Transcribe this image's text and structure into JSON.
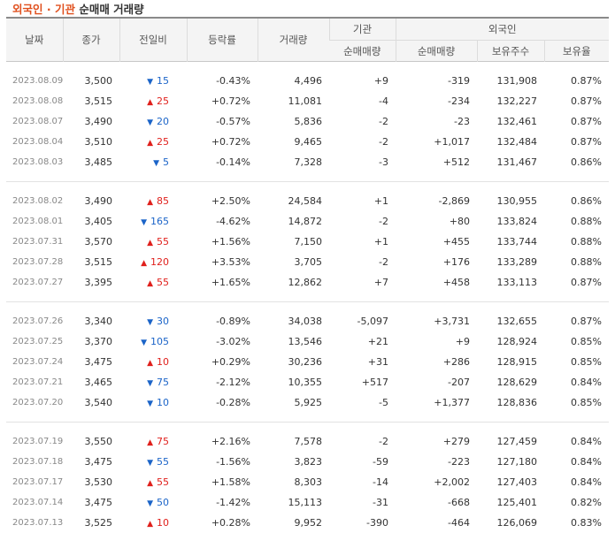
{
  "title": {
    "part1": "외국인 · 기관",
    "part2": "순매매 거래량"
  },
  "headers": {
    "date": "날짜",
    "close": "종가",
    "change": "전일비",
    "rate": "등락률",
    "volume": "거래량",
    "institution": "기관",
    "foreign": "외국인",
    "inst_net": "순매매량",
    "foreign_net": "순매매량",
    "holdings": "보유주수",
    "hold_ratio": "보유율"
  },
  "rows": [
    {
      "date": "2023.08.09",
      "close": "3,500",
      "dir": "down",
      "change": "15",
      "rate": "-0.43%",
      "volume": "4,496",
      "inst": "+9",
      "foreign": "-319",
      "holdings": "131,908",
      "ratio": "0.87%"
    },
    {
      "date": "2023.08.08",
      "close": "3,515",
      "dir": "up",
      "change": "25",
      "rate": "+0.72%",
      "volume": "11,081",
      "inst": "-4",
      "foreign": "-234",
      "holdings": "132,227",
      "ratio": "0.87%"
    },
    {
      "date": "2023.08.07",
      "close": "3,490",
      "dir": "down",
      "change": "20",
      "rate": "-0.57%",
      "volume": "5,836",
      "inst": "-2",
      "foreign": "-23",
      "holdings": "132,461",
      "ratio": "0.87%"
    },
    {
      "date": "2023.08.04",
      "close": "3,510",
      "dir": "up",
      "change": "25",
      "rate": "+0.72%",
      "volume": "9,465",
      "inst": "-2",
      "foreign": "+1,017",
      "holdings": "132,484",
      "ratio": "0.87%"
    },
    {
      "date": "2023.08.03",
      "close": "3,485",
      "dir": "down",
      "change": "5",
      "rate": "-0.14%",
      "volume": "7,328",
      "inst": "-3",
      "foreign": "+512",
      "holdings": "131,467",
      "ratio": "0.86%"
    },
    {
      "date": "2023.08.02",
      "close": "3,490",
      "dir": "up",
      "change": "85",
      "rate": "+2.50%",
      "volume": "24,584",
      "inst": "+1",
      "foreign": "-2,869",
      "holdings": "130,955",
      "ratio": "0.86%"
    },
    {
      "date": "2023.08.01",
      "close": "3,405",
      "dir": "down",
      "change": "165",
      "rate": "-4.62%",
      "volume": "14,872",
      "inst": "-2",
      "foreign": "+80",
      "holdings": "133,824",
      "ratio": "0.88%"
    },
    {
      "date": "2023.07.31",
      "close": "3,570",
      "dir": "up",
      "change": "55",
      "rate": "+1.56%",
      "volume": "7,150",
      "inst": "+1",
      "foreign": "+455",
      "holdings": "133,744",
      "ratio": "0.88%"
    },
    {
      "date": "2023.07.28",
      "close": "3,515",
      "dir": "up",
      "change": "120",
      "rate": "+3.53%",
      "volume": "3,705",
      "inst": "-2",
      "foreign": "+176",
      "holdings": "133,289",
      "ratio": "0.88%"
    },
    {
      "date": "2023.07.27",
      "close": "3,395",
      "dir": "up",
      "change": "55",
      "rate": "+1.65%",
      "volume": "12,862",
      "inst": "+7",
      "foreign": "+458",
      "holdings": "133,113",
      "ratio": "0.87%"
    },
    {
      "date": "2023.07.26",
      "close": "3,340",
      "dir": "down",
      "change": "30",
      "rate": "-0.89%",
      "volume": "34,038",
      "inst": "-5,097",
      "foreign": "+3,731",
      "holdings": "132,655",
      "ratio": "0.87%"
    },
    {
      "date": "2023.07.25",
      "close": "3,370",
      "dir": "down",
      "change": "105",
      "rate": "-3.02%",
      "volume": "13,546",
      "inst": "+21",
      "foreign": "+9",
      "holdings": "128,924",
      "ratio": "0.85%"
    },
    {
      "date": "2023.07.24",
      "close": "3,475",
      "dir": "up",
      "change": "10",
      "rate": "+0.29%",
      "volume": "30,236",
      "inst": "+31",
      "foreign": "+286",
      "holdings": "128,915",
      "ratio": "0.85%"
    },
    {
      "date": "2023.07.21",
      "close": "3,465",
      "dir": "down",
      "change": "75",
      "rate": "-2.12%",
      "volume": "10,355",
      "inst": "+517",
      "foreign": "-207",
      "holdings": "128,629",
      "ratio": "0.84%"
    },
    {
      "date": "2023.07.20",
      "close": "3,540",
      "dir": "down",
      "change": "10",
      "rate": "-0.28%",
      "volume": "5,925",
      "inst": "-5",
      "foreign": "+1,377",
      "holdings": "128,836",
      "ratio": "0.85%"
    },
    {
      "date": "2023.07.19",
      "close": "3,550",
      "dir": "up",
      "change": "75",
      "rate": "+2.16%",
      "volume": "7,578",
      "inst": "-2",
      "foreign": "+279",
      "holdings": "127,459",
      "ratio": "0.84%"
    },
    {
      "date": "2023.07.18",
      "close": "3,475",
      "dir": "down",
      "change": "55",
      "rate": "-1.56%",
      "volume": "3,823",
      "inst": "-59",
      "foreign": "-223",
      "holdings": "127,180",
      "ratio": "0.84%"
    },
    {
      "date": "2023.07.17",
      "close": "3,530",
      "dir": "up",
      "change": "55",
      "rate": "+1.58%",
      "volume": "8,303",
      "inst": "-14",
      "foreign": "+2,002",
      "holdings": "127,403",
      "ratio": "0.84%"
    },
    {
      "date": "2023.07.14",
      "close": "3,475",
      "dir": "down",
      "change": "50",
      "rate": "-1.42%",
      "volume": "15,113",
      "inst": "-31",
      "foreign": "-668",
      "holdings": "125,401",
      "ratio": "0.82%"
    },
    {
      "date": "2023.07.13",
      "close": "3,525",
      "dir": "up",
      "change": "10",
      "rate": "+0.28%",
      "volume": "9,952",
      "inst": "-390",
      "foreign": "-464",
      "holdings": "126,069",
      "ratio": "0.83%"
    }
  ],
  "icons": {
    "up": "triangle-up-icon",
    "down": "triangle-down-icon"
  },
  "colors": {
    "up": "#e0201c",
    "down": "#1b64c8",
    "title_accent": "#e0501e"
  }
}
